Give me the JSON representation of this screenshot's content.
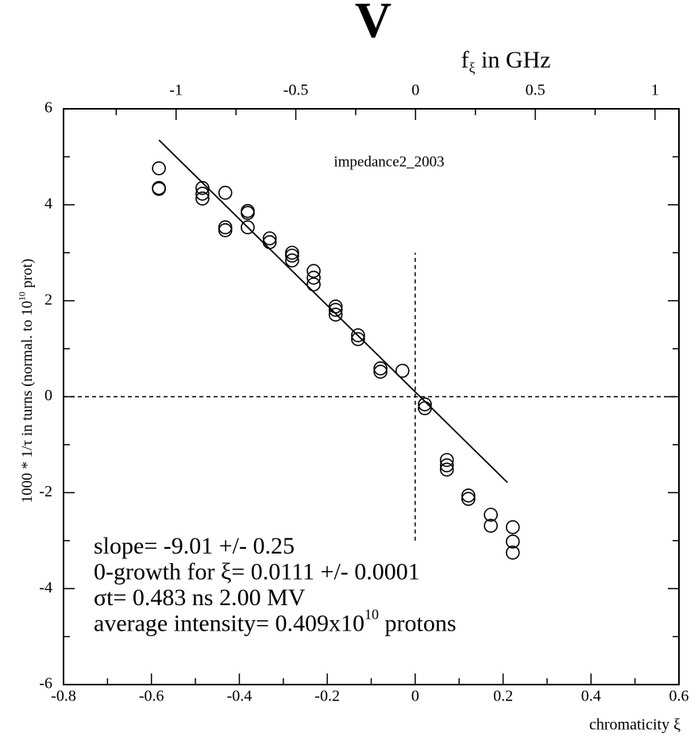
{
  "chart_data": {
    "type": "scatter",
    "title": "V",
    "subtitle": "impedance2_2003",
    "xlabel": "chromaticity ξ",
    "ylabel": [
      {
        "text": "1000 * 1/τ  in turns  (normal. to 10"
      },
      {
        "text": "10",
        "sup": true
      },
      {
        "text": " prot)"
      }
    ],
    "x2label": [
      {
        "text": "f"
      },
      {
        "text": "ξ",
        "sub": true
      },
      {
        "text": " in GHz"
      }
    ],
    "xlim": [
      -0.8,
      0.6
    ],
    "xticks": [
      {
        "value": -0.8,
        "label": "-0.8"
      },
      {
        "value": -0.6,
        "label": "-0.6"
      },
      {
        "value": -0.4,
        "label": "-0.4"
      },
      {
        "value": -0.2,
        "label": "-0.2"
      },
      0,
      {
        "value": 0.2,
        "label": "0.2"
      },
      {
        "value": 0.4,
        "label": "0.4"
      },
      {
        "value": 0.6,
        "label": "0.6"
      }
    ],
    "xminorticks": [
      -0.7,
      -0.5,
      -0.3,
      -0.1,
      0.1,
      0.3,
      0.5
    ],
    "ylim": [
      -6,
      6
    ],
    "yticks": [
      -6,
      -4,
      -2,
      0,
      2,
      4,
      6
    ],
    "yminorticks": [
      -5,
      -3,
      -1,
      1,
      3,
      5
    ],
    "x2lim": [
      -1.47,
      1.1
    ],
    "x2ticks": [
      -1,
      -0.5,
      0,
      0.5,
      1
    ],
    "x2minorticks": [
      -1.25,
      -0.75,
      -0.25,
      0.25,
      0.75
    ],
    "color": "#000000",
    "x": [
      -0.583,
      -0.583,
      -0.583,
      -0.484,
      -0.484,
      -0.484,
      -0.432,
      -0.432,
      -0.432,
      -0.381,
      -0.381,
      -0.381,
      -0.331,
      -0.331,
      -0.28,
      -0.28,
      -0.28,
      -0.231,
      -0.231,
      -0.231,
      -0.181,
      -0.181,
      -0.181,
      -0.13,
      -0.13,
      -0.079,
      -0.079,
      -0.029,
      0.022,
      0.022,
      0.072,
      0.072,
      0.072,
      0.121,
      0.121,
      0.172,
      0.172,
      0.222,
      0.222,
      0.222
    ],
    "values": [
      4.76,
      4.35,
      4.33,
      4.35,
      4.23,
      4.13,
      4.25,
      3.53,
      3.47,
      3.87,
      3.83,
      3.53,
      3.3,
      3.22,
      3.0,
      2.94,
      2.84,
      2.62,
      2.48,
      2.34,
      1.88,
      1.81,
      1.71,
      1.28,
      1.2,
      0.59,
      0.52,
      0.54,
      -0.16,
      -0.24,
      -1.32,
      -1.43,
      -1.52,
      -2.06,
      -2.13,
      -2.46,
      -2.69,
      -2.72,
      -3.02,
      -3.25
    ],
    "fit": {
      "x": [
        -0.583,
        0.21
      ],
      "values": [
        5.35,
        -1.79
      ]
    },
    "reference_lines": {
      "hline": 0,
      "vline": 0,
      "vline_ylim": [
        -3,
        3
      ]
    },
    "annotations": [
      [
        {
          "text": "slope= -9.01 +/-   0.25"
        }
      ],
      [
        {
          "text": "0-growth for ξ= 0.0111 +/-  0.0001"
        }
      ],
      [
        {
          "text": "σt=  0.483 ns   2.00 MV"
        }
      ],
      [
        {
          "text": "average intensity=  0.409x10"
        },
        {
          "text": "10",
          "sup": true
        },
        {
          "text": " protons"
        }
      ]
    ]
  }
}
